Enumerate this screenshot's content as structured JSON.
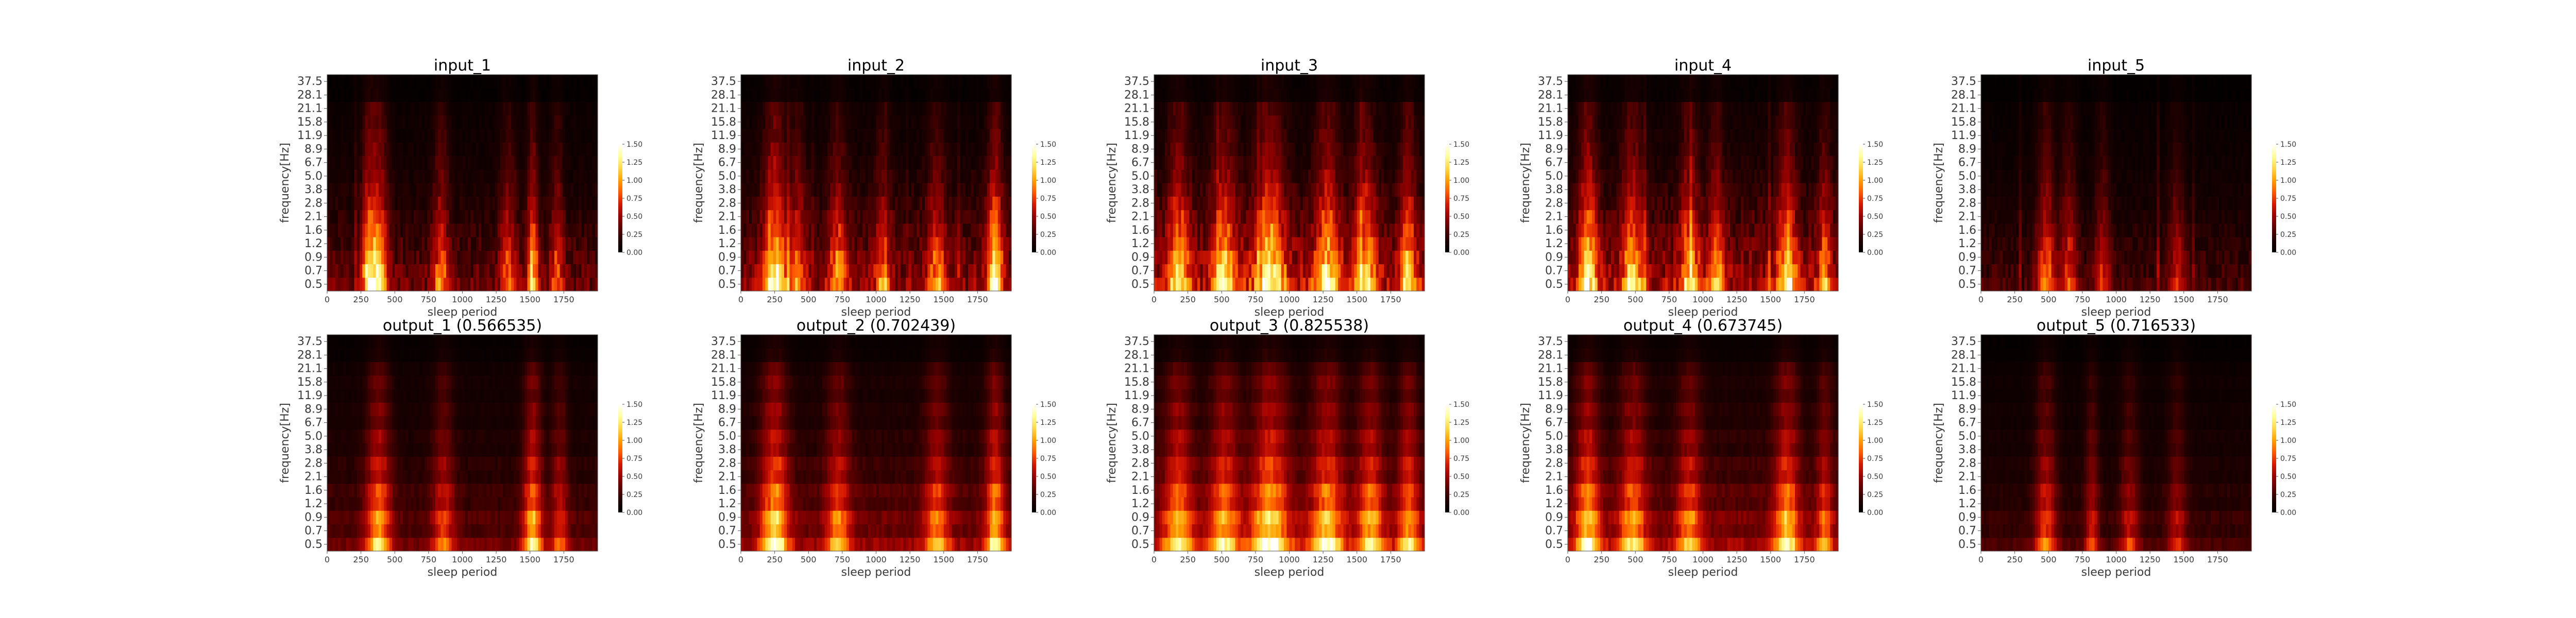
{
  "figure": {
    "background": "#ffffff",
    "colormap": "hot",
    "colormap_stops": [
      "#000000",
      "#200000",
      "#5a0000",
      "#990000",
      "#d41800",
      "#ff5a00",
      "#ffa000",
      "#ffd84a",
      "#ffff9a",
      "#ffffff"
    ]
  },
  "chart_data": [
    {
      "type": "heatmap",
      "title": "input_1",
      "xlabel": "sleep period",
      "ylabel": "frequency[Hz]",
      "xlim": [
        0,
        2000
      ],
      "xticks": [
        0,
        250,
        500,
        750,
        1000,
        1250,
        1500,
        1750
      ],
      "yticks": [
        "0.5",
        "0.7",
        "0.9",
        "1.2",
        "1.6",
        "2.1",
        "2.8",
        "3.8",
        "5.0",
        "6.7",
        "8.9",
        "11.9",
        "15.8",
        "21.1",
        "28.1",
        "37.5"
      ],
      "colorbar": {
        "ticks": [
          "0.00",
          "0.25",
          "0.50",
          "0.75",
          "1.00",
          "1.25",
          "1.50"
        ],
        "range": [
          0,
          1.5
        ]
      },
      "mode": "input",
      "intensity": 0.6,
      "hotspots": [
        {
          "x": 380,
          "w": 70,
          "h": 1.0
        },
        {
          "x": 300,
          "w": 50,
          "h": 0.75
        },
        {
          "x": 840,
          "w": 60,
          "h": 0.65
        },
        {
          "x": 1340,
          "w": 60,
          "h": 0.6
        },
        {
          "x": 1520,
          "w": 40,
          "h": 0.9
        },
        {
          "x": 1700,
          "w": 50,
          "h": 0.55
        }
      ]
    },
    {
      "type": "heatmap",
      "title": "input_2",
      "xlabel": "sleep period",
      "ylabel": "frequency[Hz]",
      "xlim": [
        0,
        2000
      ],
      "xticks": [
        0,
        250,
        500,
        750,
        1000,
        1250,
        1500,
        1750
      ],
      "yticks": [
        "0.5",
        "0.7",
        "0.9",
        "1.2",
        "1.6",
        "2.1",
        "2.8",
        "3.8",
        "5.0",
        "6.7",
        "8.9",
        "11.9",
        "15.8",
        "21.1",
        "28.1",
        "37.5"
      ],
      "colorbar": {
        "ticks": [
          "0.00",
          "0.25",
          "0.50",
          "0.75",
          "1.00",
          "1.25",
          "1.50"
        ],
        "range": [
          0,
          1.5
        ]
      },
      "mode": "input",
      "intensity": 0.75,
      "hotspots": [
        {
          "x": 250,
          "w": 80,
          "h": 1.1
        },
        {
          "x": 420,
          "w": 60,
          "h": 0.6
        },
        {
          "x": 720,
          "w": 70,
          "h": 0.65
        },
        {
          "x": 1050,
          "w": 60,
          "h": 0.55
        },
        {
          "x": 1450,
          "w": 70,
          "h": 0.6
        },
        {
          "x": 1880,
          "w": 60,
          "h": 1.0
        }
      ]
    },
    {
      "type": "heatmap",
      "title": "input_3",
      "xlabel": "sleep period",
      "ylabel": "frequency[Hz]",
      "xlim": [
        0,
        2000
      ],
      "xticks": [
        0,
        250,
        500,
        750,
        1000,
        1250,
        1500,
        1750
      ],
      "yticks": [
        "0.5",
        "0.7",
        "0.9",
        "1.2",
        "1.6",
        "2.1",
        "2.8",
        "3.8",
        "5.0",
        "6.7",
        "8.9",
        "11.9",
        "15.8",
        "21.1",
        "28.1",
        "37.5"
      ],
      "colorbar": {
        "ticks": [
          "0.00",
          "0.25",
          "0.50",
          "0.75",
          "1.00",
          "1.25",
          "1.50"
        ],
        "range": [
          0,
          1.5
        ]
      },
      "mode": "input",
      "intensity": 0.9,
      "hotspots": [
        {
          "x": 180,
          "w": 80,
          "h": 0.8
        },
        {
          "x": 520,
          "w": 90,
          "h": 0.85
        },
        {
          "x": 860,
          "w": 110,
          "h": 1.0
        },
        {
          "x": 1280,
          "w": 90,
          "h": 0.9
        },
        {
          "x": 1560,
          "w": 80,
          "h": 0.85
        },
        {
          "x": 1880,
          "w": 60,
          "h": 0.8
        }
      ]
    },
    {
      "type": "heatmap",
      "title": "input_4",
      "xlabel": "sleep period",
      "ylabel": "frequency[Hz]",
      "xlim": [
        0,
        2000
      ],
      "xticks": [
        0,
        250,
        500,
        750,
        1000,
        1250,
        1500,
        1750
      ],
      "yticks": [
        "0.5",
        "0.7",
        "0.9",
        "1.2",
        "1.6",
        "2.1",
        "2.8",
        "3.8",
        "5.0",
        "6.7",
        "8.9",
        "11.9",
        "15.8",
        "21.1",
        "28.1",
        "37.5"
      ],
      "colorbar": {
        "ticks": [
          "0.00",
          "0.25",
          "0.50",
          "0.75",
          "1.00",
          "1.25",
          "1.50"
        ],
        "range": [
          0,
          1.5
        ]
      },
      "mode": "input",
      "intensity": 0.85,
      "hotspots": [
        {
          "x": 150,
          "w": 70,
          "h": 1.0
        },
        {
          "x": 480,
          "w": 80,
          "h": 0.8
        },
        {
          "x": 900,
          "w": 70,
          "h": 0.75
        },
        {
          "x": 1100,
          "w": 60,
          "h": 0.65
        },
        {
          "x": 1620,
          "w": 70,
          "h": 0.9
        },
        {
          "x": 1900,
          "w": 50,
          "h": 0.6
        }
      ]
    },
    {
      "type": "heatmap",
      "title": "input_5",
      "xlabel": "sleep period",
      "ylabel": "frequency[Hz]",
      "xlim": [
        0,
        2000
      ],
      "xticks": [
        0,
        250,
        500,
        750,
        1000,
        1250,
        1500,
        1750
      ],
      "yticks": [
        "0.5",
        "0.7",
        "0.9",
        "1.2",
        "1.6",
        "2.1",
        "2.8",
        "3.8",
        "5.0",
        "6.7",
        "8.9",
        "11.9",
        "15.8",
        "21.1",
        "28.1",
        "37.5"
      ],
      "colorbar": {
        "ticks": [
          "0.00",
          "0.25",
          "0.50",
          "0.75",
          "1.00",
          "1.25",
          "1.50"
        ],
        "range": [
          0,
          1.5
        ]
      },
      "mode": "input",
      "intensity": 0.45,
      "hotspots": [
        {
          "x": 480,
          "w": 70,
          "h": 0.75
        },
        {
          "x": 650,
          "w": 60,
          "h": 0.6
        },
        {
          "x": 900,
          "w": 60,
          "h": 0.5
        },
        {
          "x": 1450,
          "w": 60,
          "h": 0.45
        }
      ]
    },
    {
      "type": "heatmap",
      "title": "output_1 (0.566535)",
      "xlabel": "sleep period",
      "ylabel": "frequency[Hz]",
      "xlim": [
        0,
        2000
      ],
      "xticks": [
        0,
        250,
        500,
        750,
        1000,
        1250,
        1500,
        1750
      ],
      "yticks": [
        "0.5",
        "0.7",
        "0.9",
        "1.2",
        "1.6",
        "2.1",
        "2.8",
        "3.8",
        "5.0",
        "6.7",
        "8.9",
        "11.9",
        "15.8",
        "21.1",
        "28.1",
        "37.5"
      ],
      "colorbar": {
        "ticks": [
          "0.00",
          "0.25",
          "0.50",
          "0.75",
          "1.00",
          "1.25",
          "1.50"
        ],
        "range": [
          0,
          1.5
        ]
      },
      "mode": "output",
      "intensity": 0.6,
      "hotspots": [
        {
          "x": 380,
          "w": 90,
          "h": 0.9
        },
        {
          "x": 860,
          "w": 80,
          "h": 0.6
        },
        {
          "x": 1520,
          "w": 70,
          "h": 0.95
        },
        {
          "x": 1720,
          "w": 60,
          "h": 0.55
        }
      ]
    },
    {
      "type": "heatmap",
      "title": "output_2 (0.702439)",
      "xlabel": "sleep period",
      "ylabel": "frequency[Hz]",
      "xlim": [
        0,
        2000
      ],
      "xticks": [
        0,
        250,
        500,
        750,
        1000,
        1250,
        1500,
        1750
      ],
      "yticks": [
        "0.5",
        "0.7",
        "0.9",
        "1.2",
        "1.6",
        "2.1",
        "2.8",
        "3.8",
        "5.0",
        "6.7",
        "8.9",
        "11.9",
        "15.8",
        "21.1",
        "28.1",
        "37.5"
      ],
      "colorbar": {
        "ticks": [
          "0.00",
          "0.25",
          "0.50",
          "0.75",
          "1.00",
          "1.25",
          "1.50"
        ],
        "range": [
          0,
          1.5
        ]
      },
      "mode": "output",
      "intensity": 0.75,
      "hotspots": [
        {
          "x": 250,
          "w": 100,
          "h": 1.05
        },
        {
          "x": 720,
          "w": 90,
          "h": 0.7
        },
        {
          "x": 1450,
          "w": 90,
          "h": 0.7
        },
        {
          "x": 1880,
          "w": 70,
          "h": 0.95
        }
      ]
    },
    {
      "type": "heatmap",
      "title": "output_3 (0.825538)",
      "xlabel": "sleep period",
      "ylabel": "frequency[Hz]",
      "xlim": [
        0,
        2000
      ],
      "xticks": [
        0,
        250,
        500,
        750,
        1000,
        1250,
        1500,
        1750
      ],
      "yticks": [
        "0.5",
        "0.7",
        "0.9",
        "1.2",
        "1.6",
        "2.1",
        "2.8",
        "3.8",
        "5.0",
        "6.7",
        "8.9",
        "11.9",
        "15.8",
        "21.1",
        "28.1",
        "37.5"
      ],
      "colorbar": {
        "ticks": [
          "0.00",
          "0.25",
          "0.50",
          "0.75",
          "1.00",
          "1.25",
          "1.50"
        ],
        "range": [
          0,
          1.5
        ]
      },
      "mode": "output",
      "intensity": 0.9,
      "hotspots": [
        {
          "x": 180,
          "w": 100,
          "h": 0.8
        },
        {
          "x": 520,
          "w": 100,
          "h": 0.8
        },
        {
          "x": 860,
          "w": 130,
          "h": 1.0
        },
        {
          "x": 1280,
          "w": 110,
          "h": 0.9
        },
        {
          "x": 1600,
          "w": 90,
          "h": 0.8
        },
        {
          "x": 1880,
          "w": 70,
          "h": 0.75
        }
      ]
    },
    {
      "type": "heatmap",
      "title": "output_4 (0.673745)",
      "xlabel": "sleep period",
      "ylabel": "frequency[Hz]",
      "xlim": [
        0,
        2000
      ],
      "xticks": [
        0,
        250,
        500,
        750,
        1000,
        1250,
        1500,
        1750
      ],
      "yticks": [
        "0.5",
        "0.7",
        "0.9",
        "1.2",
        "1.6",
        "2.1",
        "2.8",
        "3.8",
        "5.0",
        "6.7",
        "8.9",
        "11.9",
        "15.8",
        "21.1",
        "28.1",
        "37.5"
      ],
      "colorbar": {
        "ticks": [
          "0.00",
          "0.25",
          "0.50",
          "0.75",
          "1.00",
          "1.25",
          "1.50"
        ],
        "range": [
          0,
          1.5
        ]
      },
      "mode": "output",
      "intensity": 0.8,
      "hotspots": [
        {
          "x": 150,
          "w": 90,
          "h": 0.95
        },
        {
          "x": 480,
          "w": 100,
          "h": 0.8
        },
        {
          "x": 900,
          "w": 90,
          "h": 0.7
        },
        {
          "x": 1620,
          "w": 90,
          "h": 0.9
        },
        {
          "x": 1900,
          "w": 60,
          "h": 0.6
        }
      ]
    },
    {
      "type": "heatmap",
      "title": "output_5 (0.716533)",
      "xlabel": "sleep period",
      "ylabel": "frequency[Hz]",
      "xlim": [
        0,
        2000
      ],
      "xticks": [
        0,
        250,
        500,
        750,
        1000,
        1250,
        1500,
        1750
      ],
      "yticks": [
        "0.5",
        "0.7",
        "0.9",
        "1.2",
        "1.6",
        "2.1",
        "2.8",
        "3.8",
        "5.0",
        "6.7",
        "8.9",
        "11.9",
        "15.8",
        "21.1",
        "28.1",
        "37.5"
      ],
      "colorbar": {
        "ticks": [
          "0.00",
          "0.25",
          "0.50",
          "0.75",
          "1.00",
          "1.25",
          "1.50"
        ],
        "range": [
          0,
          1.5
        ]
      },
      "mode": "output",
      "intensity": 0.45,
      "hotspots": [
        {
          "x": 480,
          "w": 80,
          "h": 0.7
        },
        {
          "x": 820,
          "w": 50,
          "h": 0.55
        },
        {
          "x": 1100,
          "w": 70,
          "h": 0.5
        },
        {
          "x": 1450,
          "w": 70,
          "h": 0.45
        }
      ]
    }
  ]
}
